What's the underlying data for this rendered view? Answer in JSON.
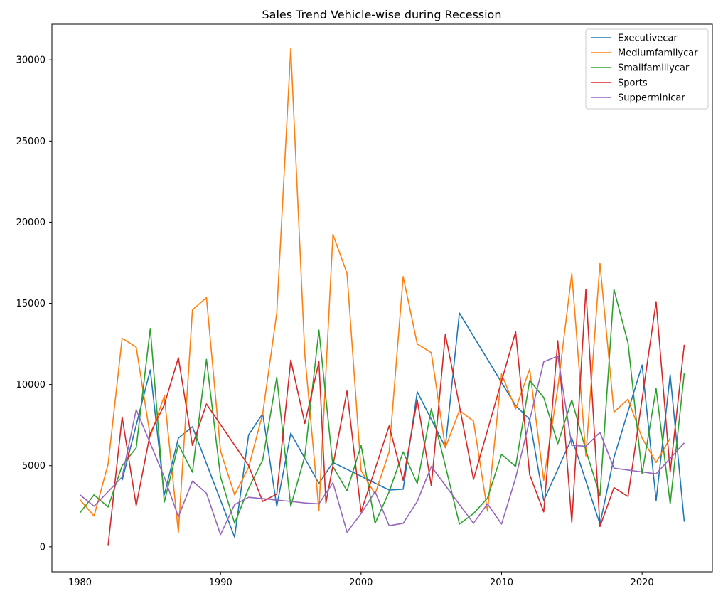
{
  "chart_data": {
    "type": "line",
    "title": "Sales Trend Vehicle-wise during Recession",
    "xlabel": "",
    "ylabel": "",
    "xlim": [
      1978,
      2025
    ],
    "ylim": [
      -1540,
      32200
    ],
    "xticks": [
      1980,
      1990,
      2000,
      2010,
      2020
    ],
    "yticks": [
      0,
      5000,
      10000,
      15000,
      20000,
      25000,
      30000
    ],
    "grid": false,
    "legend_position": "top-right",
    "series": [
      {
        "name": "Executivecar",
        "color": "#1f77b4",
        "points": [
          [
            1983,
            4100
          ],
          [
            1985,
            10900
          ],
          [
            1986,
            3200
          ],
          [
            1987,
            6700
          ],
          [
            1988,
            7400
          ],
          [
            1991,
            600
          ],
          [
            1992,
            6900
          ],
          [
            1993,
            8200
          ],
          [
            1994,
            2500
          ],
          [
            1995,
            7000
          ],
          [
            1997,
            3900
          ],
          [
            1998,
            5200
          ],
          [
            2002,
            3500
          ],
          [
            2003,
            3550
          ],
          [
            2004,
            9550
          ],
          [
            2006,
            6150
          ],
          [
            2007,
            14400
          ],
          [
            2011,
            8700
          ],
          [
            2012,
            7850
          ],
          [
            2013,
            2850
          ],
          [
            2015,
            6700
          ],
          [
            2017,
            1400
          ],
          [
            2018,
            5500
          ],
          [
            2020,
            11200
          ],
          [
            2021,
            2850
          ],
          [
            2022,
            10600
          ],
          [
            2023,
            1550
          ]
        ]
      },
      {
        "name": "Mediumfamilycar",
        "color": "#ff7f0e",
        "points": [
          [
            1980,
            2900
          ],
          [
            1981,
            1900
          ],
          [
            1982,
            5100
          ],
          [
            1983,
            12850
          ],
          [
            1984,
            12300
          ],
          [
            1985,
            6800
          ],
          [
            1986,
            9300
          ],
          [
            1987,
            900
          ],
          [
            1988,
            14600
          ],
          [
            1989,
            15350
          ],
          [
            1990,
            5900
          ],
          [
            1991,
            3200
          ],
          [
            1992,
            4900
          ],
          [
            1993,
            8200
          ],
          [
            1994,
            14400
          ],
          [
            1995,
            30700
          ],
          [
            1996,
            11800
          ],
          [
            1997,
            2250
          ],
          [
            1998,
            19250
          ],
          [
            1999,
            16850
          ],
          [
            2000,
            4700
          ],
          [
            2001,
            3250
          ],
          [
            2002,
            5850
          ],
          [
            2003,
            16650
          ],
          [
            2004,
            12500
          ],
          [
            2005,
            11950
          ],
          [
            2006,
            6100
          ],
          [
            2007,
            8400
          ],
          [
            2008,
            7750
          ],
          [
            2009,
            2200
          ],
          [
            2010,
            10650
          ],
          [
            2011,
            8500
          ],
          [
            2012,
            10950
          ],
          [
            2013,
            4100
          ],
          [
            2014,
            9800
          ],
          [
            2015,
            16850
          ],
          [
            2016,
            5600
          ],
          [
            2017,
            17450
          ],
          [
            2018,
            8300
          ],
          [
            2019,
            9100
          ],
          [
            2020,
            6700
          ],
          [
            2021,
            5200
          ],
          [
            2022,
            6700
          ]
        ]
      },
      {
        "name": "Smallfamiliycar",
        "color": "#2ca02c",
        "points": [
          [
            1980,
            2100
          ],
          [
            1981,
            3200
          ],
          [
            1982,
            2450
          ],
          [
            1983,
            5000
          ],
          [
            1984,
            6100
          ],
          [
            1985,
            13450
          ],
          [
            1986,
            2750
          ],
          [
            1987,
            6300
          ],
          [
            1988,
            4600
          ],
          [
            1989,
            11550
          ],
          [
            1990,
            4300
          ],
          [
            1991,
            1450
          ],
          [
            1992,
            3600
          ],
          [
            1993,
            5350
          ],
          [
            1994,
            10450
          ],
          [
            1995,
            2500
          ],
          [
            1996,
            5600
          ],
          [
            1997,
            13350
          ],
          [
            1998,
            4950
          ],
          [
            1999,
            3450
          ],
          [
            2000,
            6250
          ],
          [
            2001,
            1450
          ],
          [
            2002,
            3400
          ],
          [
            2003,
            5850
          ],
          [
            2004,
            3900
          ],
          [
            2005,
            8500
          ],
          [
            2006,
            5000
          ],
          [
            2007,
            1400
          ],
          [
            2008,
            2050
          ],
          [
            2009,
            3000
          ],
          [
            2010,
            5700
          ],
          [
            2011,
            4950
          ],
          [
            2012,
            10250
          ],
          [
            2013,
            9200
          ],
          [
            2014,
            6350
          ],
          [
            2015,
            9050
          ],
          [
            2016,
            5950
          ],
          [
            2017,
            3150
          ],
          [
            2018,
            15850
          ],
          [
            2019,
            12550
          ],
          [
            2020,
            4500
          ],
          [
            2021,
            9750
          ],
          [
            2022,
            2650
          ],
          [
            2023,
            10700
          ]
        ]
      },
      {
        "name": "Sports",
        "color": "#d62728",
        "points": [
          [
            1982,
            100
          ],
          [
            1983,
            8000
          ],
          [
            1984,
            2550
          ],
          [
            1985,
            7000
          ],
          [
            1986,
            8750
          ],
          [
            1987,
            11650
          ],
          [
            1988,
            6250
          ],
          [
            1989,
            8800
          ],
          [
            1992,
            5000
          ],
          [
            1993,
            2800
          ],
          [
            1994,
            3250
          ],
          [
            1995,
            11500
          ],
          [
            1996,
            7600
          ],
          [
            1997,
            11400
          ],
          [
            1997.5,
            2700
          ],
          [
            1998,
            5000
          ],
          [
            1999,
            9600
          ],
          [
            2000,
            2150
          ],
          [
            2002,
            7450
          ],
          [
            2003,
            4100
          ],
          [
            2004,
            9050
          ],
          [
            2005,
            3750
          ],
          [
            2006,
            13100
          ],
          [
            2007,
            8700
          ],
          [
            2008,
            4150
          ],
          [
            2011,
            13250
          ],
          [
            2012,
            4450
          ],
          [
            2013,
            2150
          ],
          [
            2014,
            12700
          ],
          [
            2015,
            1500
          ],
          [
            2016,
            15850
          ],
          [
            2017,
            1250
          ],
          [
            2018,
            3650
          ],
          [
            2019,
            3100
          ],
          [
            2021,
            15100
          ],
          [
            2022,
            4600
          ],
          [
            2023,
            12450
          ]
        ]
      },
      {
        "name": "Supperminicar",
        "color": "#9467bd",
        "points": [
          [
            1980,
            3200
          ],
          [
            1981,
            2500
          ],
          [
            1983,
            4300
          ],
          [
            1984,
            8450
          ],
          [
            1986,
            4300
          ],
          [
            1987,
            1850
          ],
          [
            1988,
            4050
          ],
          [
            1989,
            3300
          ],
          [
            1990,
            750
          ],
          [
            1991,
            2600
          ],
          [
            1992,
            3050
          ],
          [
            1995,
            2800
          ],
          [
            1996,
            2700
          ],
          [
            1997,
            2650
          ],
          [
            1998,
            3950
          ],
          [
            1999,
            900
          ],
          [
            2000,
            2050
          ],
          [
            2001,
            3400
          ],
          [
            2002,
            1300
          ],
          [
            2003,
            1450
          ],
          [
            2004,
            2800
          ],
          [
            2005,
            4950
          ],
          [
            2008,
            1450
          ],
          [
            2009,
            2650
          ],
          [
            2010,
            1400
          ],
          [
            2011,
            4250
          ],
          [
            2012,
            7800
          ],
          [
            2013,
            11400
          ],
          [
            2014,
            11750
          ],
          [
            2015,
            6250
          ],
          [
            2016,
            6200
          ],
          [
            2017,
            7050
          ],
          [
            2018,
            4850
          ],
          [
            2021,
            4500
          ],
          [
            2023,
            6400
          ]
        ]
      }
    ]
  }
}
